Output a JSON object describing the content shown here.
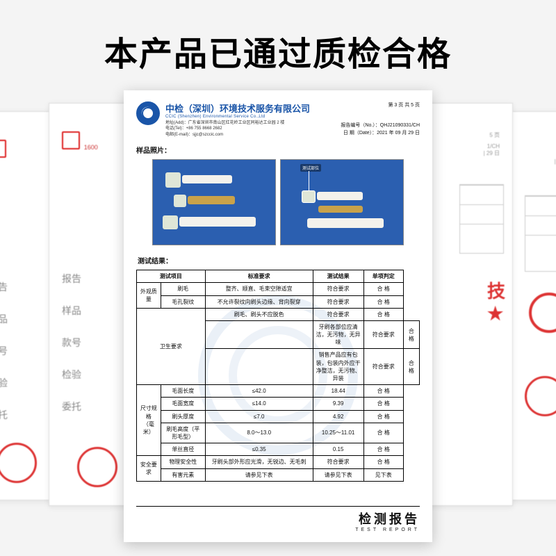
{
  "headline": "本产品已通过质检合格",
  "bg_left_fields": [
    "报告",
    "样品",
    "款号",
    "检验",
    "委托"
  ],
  "report": {
    "company_cn": "中检（深圳）环境技术服务有限公司",
    "company_en": "CCIC (Shenzhen) Environmental Service Co.,Ltd",
    "address_lines": "地址(Add)：广东省深圳市南山区红花岭工业区同裕达工业园 2 楼\n电话(Tel)：+86 755 8668 2682\n电邮(E-mail)：sjjc@szccic.com",
    "page_info": "第 3 页  共 5 页",
    "report_no_label": "报告编号（No.）：",
    "report_no": "QHJ21090331/CH",
    "date_label": "日 期（Date）：",
    "date": "2021 年 09 月 29 日",
    "photo_section_label": "样品照片：",
    "callout_text": "测试部位",
    "result_section_label": "测试结果：",
    "footer_cn": "检测报告",
    "footer_en": "TEST  REPORT",
    "table": {
      "headers": [
        "测试项目",
        "",
        "标准要求",
        "测试结果",
        "单项判定"
      ],
      "rows": [
        {
          "g": "外观质量",
          "gi": "刷毛",
          "std": "整齐、顺直、毛束空隙适宜",
          "res": "符合要求",
          "jud": "合 格",
          "gr": 2
        },
        {
          "g": "",
          "gi": "毛孔裂纹",
          "std": "不允许裂纹向刷头边缘、背向裂穿",
          "res": "符合要求",
          "jud": "合 格"
        },
        {
          "g": "卫生要求",
          "gi": "",
          "std": "刷毛、刷头不应脱色",
          "res": "符合要求",
          "jud": "合 格",
          "gr": 3,
          "gio": true
        },
        {
          "g": "",
          "gi": "",
          "std": "牙刷各部位应清洁，无污物，无异味",
          "res": "符合要求",
          "jud": "合 格"
        },
        {
          "g": "",
          "gi": "",
          "std": "销售产品应有包装，包装内外应干净整洁，无污物、异装",
          "res": "符合要求",
          "jud": "合 格"
        },
        {
          "g": "尺寸规格\n（毫米）",
          "gi": "毛面长度",
          "std": "≤42.0",
          "res": "18.44",
          "jud": "合 格",
          "gr": 5
        },
        {
          "g": "",
          "gi": "毛面宽度",
          "std": "≤14.0",
          "res": "9.39",
          "jud": "合 格"
        },
        {
          "g": "",
          "gi": "刷头厚度",
          "std": "≤7.0",
          "res": "4.92",
          "jud": "合 格"
        },
        {
          "g": "",
          "gi": "刷毛高度（平形毛型）",
          "std": "8.0～13.0",
          "res": "10.25～11.01",
          "jud": "合 格"
        },
        {
          "g": "",
          "gi": "单丝直径",
          "std": "≤0.35",
          "res": "0.15",
          "jud": "合 格"
        },
        {
          "g": "安全要求",
          "gi": "物理安全性",
          "std": "牙刷头部外形应光滑，无锐边、无毛刺",
          "res": "符合要求",
          "jud": "合 格",
          "gr": 2
        },
        {
          "g": "",
          "gi": "有害元素",
          "std": "请参见下表",
          "res": "请参见下表",
          "jud": "见下表"
        }
      ]
    }
  }
}
